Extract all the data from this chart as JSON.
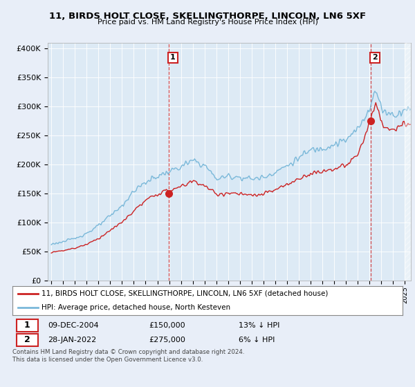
{
  "title": "11, BIRDS HOLT CLOSE, SKELLINGTHORPE, LINCOLN, LN6 5XF",
  "subtitle": "Price paid vs. HM Land Registry's House Price Index (HPI)",
  "ylabel_ticks": [
    "£0",
    "£50K",
    "£100K",
    "£150K",
    "£200K",
    "£250K",
    "£300K",
    "£350K",
    "£400K"
  ],
  "ytick_values": [
    0,
    50000,
    100000,
    150000,
    200000,
    250000,
    300000,
    350000,
    400000
  ],
  "ylim": [
    0,
    410000
  ],
  "xlim_start": 1994.7,
  "xlim_end": 2025.5,
  "hpi_color": "#7ab8d9",
  "price_color": "#cc2222",
  "fill_color": "#d6e8f5",
  "sale1_x": 2004.94,
  "sale1_y": 150000,
  "sale2_x": 2022.08,
  "sale2_y": 275000,
  "legend_label1": "11, BIRDS HOLT CLOSE, SKELLINGTHORPE, LINCOLN, LN6 5XF (detached house)",
  "legend_label2": "HPI: Average price, detached house, North Kesteven",
  "annotation1_date": "09-DEC-2004",
  "annotation1_price": "£150,000",
  "annotation1_pct": "13% ↓ HPI",
  "annotation2_date": "28-JAN-2022",
  "annotation2_price": "£275,000",
  "annotation2_pct": "6% ↓ HPI",
  "footer": "Contains HM Land Registry data © Crown copyright and database right 2024.\nThis data is licensed under the Open Government Licence v3.0.",
  "background_color": "#e8eef8",
  "plot_bg_color": "#ddeaf5",
  "grid_color": "#b0c4d8",
  "hpi_anchor_years": [
    1995,
    1996,
    1997,
    1998,
    1999,
    2000,
    2001,
    2002,
    2003,
    2004,
    2005,
    2006,
    2007,
    2008,
    2009,
    2010,
    2011,
    2012,
    2013,
    2014,
    2015,
    2016,
    2017,
    2018,
    2019,
    2020,
    2021,
    2022,
    2022.5,
    2023,
    2024,
    2025
  ],
  "hpi_anchor_vals": [
    63000,
    67000,
    73000,
    82000,
    95000,
    112000,
    130000,
    155000,
    170000,
    180000,
    188000,
    196000,
    207000,
    198000,
    175000,
    180000,
    178000,
    175000,
    178000,
    188000,
    198000,
    212000,
    225000,
    229000,
    235000,
    242000,
    262000,
    300000,
    328000,
    295000,
    285000,
    295000
  ],
  "price_anchor_years": [
    1995,
    1996,
    1997,
    1998,
    1999,
    2000,
    2001,
    2002,
    2003,
    2004,
    2005,
    2006,
    2007,
    2008,
    2009,
    2010,
    2011,
    2012,
    2013,
    2014,
    2015,
    2016,
    2017,
    2018,
    2019,
    2020,
    2021,
    2022,
    2022.5,
    2023,
    2024,
    2025
  ],
  "price_anchor_vals": [
    49000,
    52000,
    56000,
    63000,
    73000,
    87000,
    101000,
    121000,
    138000,
    150000,
    155000,
    162000,
    172000,
    163000,
    148000,
    151000,
    149000,
    146000,
    149000,
    157000,
    165000,
    176000,
    185000,
    188000,
    193000,
    198000,
    218000,
    275000,
    305000,
    268000,
    258000,
    270000
  ]
}
